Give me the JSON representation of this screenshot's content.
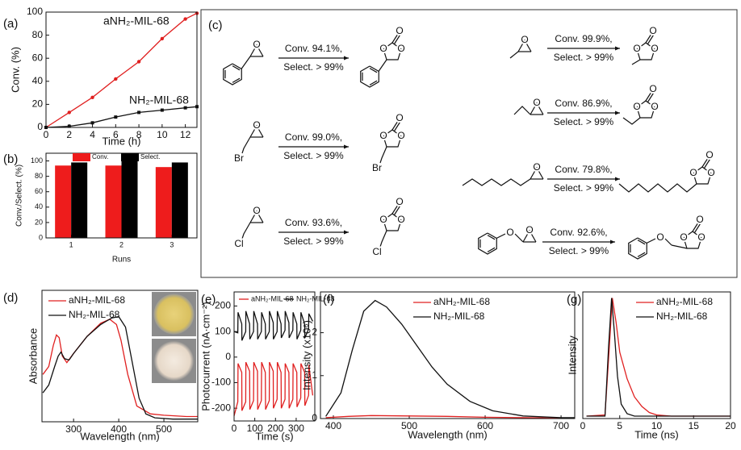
{
  "chart_data": [
    {
      "type": "line",
      "panel_label": "(a)",
      "x_label": "Time (h)",
      "y_label": "Conv. (%)",
      "xlim": [
        0,
        13
      ],
      "xticks": [
        0,
        2,
        4,
        6,
        8,
        10,
        12
      ],
      "ylim": [
        0,
        100
      ],
      "yticks": [
        0,
        20,
        40,
        60,
        80,
        100
      ],
      "series": [
        {
          "name": "aNH₂-MIL-68",
          "color": "#e02020",
          "marker": "circle",
          "x": [
            0,
            2,
            4,
            6,
            8,
            10,
            12,
            13
          ],
          "values": [
            0,
            13,
            26,
            42,
            57,
            77,
            94,
            99
          ]
        },
        {
          "name": "NH₂-MIL-68",
          "color": "#111111",
          "marker": "square",
          "x": [
            0,
            2,
            4,
            6,
            8,
            10,
            12,
            13
          ],
          "values": [
            0,
            1,
            4,
            9,
            13,
            15,
            17,
            18
          ]
        }
      ]
    },
    {
      "type": "bar",
      "panel_label": "(b)",
      "x_label": "Runs",
      "y_label": "Conv./Select. (%)",
      "categories": [
        "1",
        "2",
        "3"
      ],
      "ylim": [
        0,
        110
      ],
      "yticks": [
        0,
        20,
        40,
        60,
        80,
        100
      ],
      "series": [
        {
          "name": "Conv.",
          "color": "#ee1c1c",
          "values": [
            94,
            94,
            92
          ]
        },
        {
          "name": "Select.",
          "color": "#000000",
          "values": [
            98,
            100,
            98
          ]
        }
      ]
    },
    {
      "type": "line",
      "panel_label": "(d)",
      "x_label": "Wavelength (nm)",
      "y_label": "Absorbance",
      "xlim": [
        230,
        575
      ],
      "xticks": [
        300,
        400,
        500
      ],
      "ylim": [
        0,
        1
      ],
      "series": [
        {
          "name": "aNH₂-MIL-68",
          "color": "#e02020",
          "x": [
            232,
            245,
            255,
            262,
            268,
            275,
            285,
            300,
            330,
            360,
            380,
            395,
            405,
            420,
            440,
            470,
            500,
            550,
            575
          ],
          "values": [
            0.36,
            0.42,
            0.58,
            0.66,
            0.64,
            0.5,
            0.45,
            0.52,
            0.65,
            0.75,
            0.78,
            0.74,
            0.62,
            0.36,
            0.12,
            0.06,
            0.05,
            0.04,
            0.04
          ]
        },
        {
          "name": "NH₂-MIL-68",
          "color": "#111111",
          "x": [
            232,
            245,
            258,
            266,
            272,
            280,
            290,
            300,
            330,
            360,
            385,
            400,
            415,
            430,
            445,
            460,
            480,
            520,
            575
          ],
          "values": [
            0.22,
            0.28,
            0.42,
            0.5,
            0.53,
            0.48,
            0.47,
            0.52,
            0.65,
            0.74,
            0.79,
            0.8,
            0.72,
            0.45,
            0.18,
            0.06,
            0.03,
            0.02,
            0.02
          ]
        }
      ]
    },
    {
      "type": "line",
      "panel_label": "(e)",
      "x_label": "Time (s)",
      "y_label": "Photocurrent (nA·cm⁻²)",
      "xlim": [
        0,
        390
      ],
      "xticks": [
        0,
        100,
        200,
        300
      ],
      "ylim": [
        -250,
        255
      ],
      "yticks": [
        -200,
        -100,
        0,
        100,
        200
      ],
      "series": [
        {
          "name": "aNH₂-MIL-68",
          "color": "#e02020",
          "x": [
            0,
            18,
            19,
            37,
            38,
            56,
            57,
            75,
            76,
            94,
            95,
            113,
            114,
            132,
            133,
            151,
            152,
            170,
            171,
            189,
            190,
            208,
            209,
            227,
            228,
            246,
            247,
            265,
            266,
            284,
            285,
            303,
            304,
            322,
            323,
            341,
            342,
            360,
            361,
            380
          ],
          "values": [
            -230,
            -175,
            -25,
            -60,
            -210,
            -175,
            -20,
            -55,
            -205,
            -170,
            -20,
            -55,
            -205,
            -170,
            -20,
            -60,
            -205,
            -170,
            -20,
            -55,
            -200,
            -165,
            -20,
            -60,
            -200,
            -165,
            -25,
            -60,
            -200,
            -165,
            -25,
            -60,
            -195,
            -160,
            -25,
            -60,
            -190,
            -150,
            -30,
            -150
          ]
        },
        {
          "name": "NH₂-MIL-68",
          "color": "#111111",
          "x": [
            0,
            18,
            19,
            37,
            38,
            56,
            57,
            75,
            76,
            94,
            95,
            113,
            114,
            132,
            133,
            151,
            152,
            170,
            171,
            189,
            190,
            208,
            209,
            227,
            228,
            246,
            247,
            265,
            266,
            284,
            285,
            303,
            304,
            322,
            323,
            341,
            342,
            360,
            361,
            380
          ],
          "values": [
            100,
            95,
            175,
            130,
            65,
            100,
            180,
            130,
            70,
            100,
            180,
            130,
            70,
            100,
            175,
            130,
            70,
            100,
            180,
            135,
            70,
            100,
            180,
            130,
            75,
            105,
            180,
            135,
            75,
            105,
            175,
            130,
            70,
            105,
            175,
            130,
            75,
            110,
            170,
            140
          ]
        }
      ]
    },
    {
      "type": "line",
      "panel_label": "(f)",
      "x_label": "Wavelength (nm)",
      "y_label": "Intensity (x10⁶)",
      "xlim": [
        383,
        718
      ],
      "xticks": [
        400,
        500,
        600,
        700
      ],
      "ylim": [
        0,
        2.95
      ],
      "yticks": [
        0,
        1,
        2
      ],
      "series": [
        {
          "name": "aNH₂-MIL-68",
          "color": "#e02020",
          "x": [
            390,
            420,
            450,
            500,
            550,
            600,
            650,
            700,
            718
          ],
          "values": [
            0.02,
            0.05,
            0.07,
            0.06,
            0.05,
            0.03,
            0.02,
            0.01,
            0.01
          ]
        },
        {
          "name": "NH₂-MIL-68",
          "color": "#111111",
          "x": [
            390,
            410,
            425,
            440,
            455,
            470,
            490,
            510,
            530,
            550,
            580,
            610,
            650,
            700,
            718
          ],
          "values": [
            0.05,
            0.6,
            1.6,
            2.5,
            2.75,
            2.6,
            2.2,
            1.7,
            1.2,
            0.8,
            0.4,
            0.18,
            0.06,
            0.02,
            0.02
          ]
        }
      ]
    },
    {
      "type": "line",
      "panel_label": "(g)",
      "x_label": "Time (ns)",
      "y_label": "Intensity",
      "xlim": [
        0,
        20
      ],
      "xticks": [
        0,
        5,
        10,
        15,
        20
      ],
      "ylim": [
        0,
        1.05
      ],
      "series": [
        {
          "name": "aNH₂-MIL-68",
          "color": "#e02020",
          "x": [
            0.5,
            3,
            3.5,
            4,
            4.5,
            5,
            6,
            7,
            8,
            9,
            10,
            12,
            20
          ],
          "values": [
            0.02,
            0.03,
            0.5,
            1.0,
            0.8,
            0.55,
            0.33,
            0.18,
            0.1,
            0.05,
            0.03,
            0.02,
            0.02
          ]
        },
        {
          "name": "NH₂-MIL-68",
          "color": "#111111",
          "x": [
            0.5,
            3,
            3.5,
            3.9,
            4.3,
            4.7,
            5.2,
            6,
            7,
            20
          ],
          "values": [
            0.02,
            0.02,
            0.6,
            1.0,
            0.7,
            0.35,
            0.12,
            0.04,
            0.02,
            0.02
          ]
        }
      ]
    }
  ],
  "reactions_panel": {
    "label": "(c)",
    "oxygen": "O",
    "reactions": [
      {
        "conversion": "Conv. 94.1%,",
        "selectivity": "Select. > 99%"
      },
      {
        "conversion": "Conv. 99.0%,",
        "selectivity": "Select. > 99%",
        "halogen": "Br"
      },
      {
        "conversion": "Conv. 93.6%,",
        "selectivity": "Select. > 99%",
        "halogen": "Cl"
      },
      {
        "conversion": "Conv. 99.9%,",
        "selectivity": "Select. > 99%"
      },
      {
        "conversion": "Conv. 86.9%,",
        "selectivity": "Select. > 99%"
      },
      {
        "conversion": "Conv. 79.8%,",
        "selectivity": "Select. > 99%"
      },
      {
        "conversion": "Conv. 92.6%,",
        "selectivity": "Select. > 99%"
      }
    ]
  }
}
